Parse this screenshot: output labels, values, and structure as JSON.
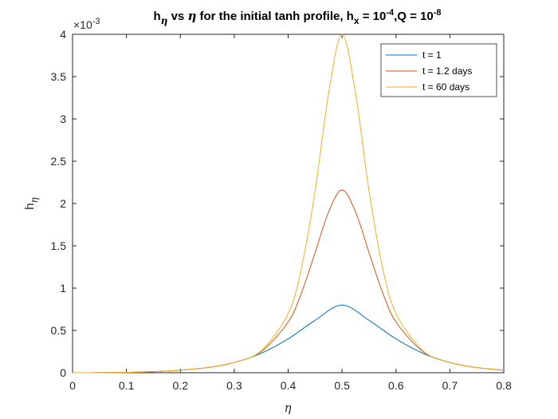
{
  "chart_data": {
    "type": "line",
    "title_parts": [
      "h",
      "η",
      " vs ",
      "η",
      " for the initial tanh profile, h",
      "x",
      " = 10",
      "-4",
      ",Q = 10",
      "-8"
    ],
    "xlabel": "η",
    "ylabel_parts": [
      "h",
      "η"
    ],
    "y_multiplier": "×10",
    "y_multiplier_exp": "-3",
    "xlim": [
      0,
      0.8
    ],
    "ylim": [
      0,
      4
    ],
    "xticks": [
      0,
      0.1,
      0.2,
      0.3,
      0.4,
      0.5,
      0.6,
      0.7,
      0.8
    ],
    "xtick_labels": [
      "0",
      "0.1",
      "0.2",
      "0.3",
      "0.4",
      "0.5",
      "0.6",
      "0.7",
      "0.8"
    ],
    "yticks": [
      0,
      0.5,
      1,
      1.5,
      2,
      2.5,
      3,
      3.5,
      4
    ],
    "ytick_labels": [
      "0",
      "0.5",
      "1",
      "1.5",
      "2",
      "2.5",
      "3",
      "3.5",
      "4"
    ],
    "grid": false,
    "legend_position": "top-right",
    "series": [
      {
        "name": "t = 1",
        "color": "#0072BD",
        "x": [
          0,
          0.05,
          0.1,
          0.15,
          0.2,
          0.25,
          0.3,
          0.35,
          0.4,
          0.45,
          0.5,
          0.55,
          0.6,
          0.65,
          0.7,
          0.75,
          0.8
        ],
        "y": [
          0.0,
          0.001,
          0.004,
          0.013,
          0.03,
          0.06,
          0.12,
          0.23,
          0.4,
          0.62,
          0.8,
          0.62,
          0.4,
          0.23,
          0.12,
          0.06,
          0.03
        ]
      },
      {
        "name": "t = 1.2 days",
        "color": "#D95319",
        "x": [
          0,
          0.05,
          0.1,
          0.15,
          0.2,
          0.25,
          0.3,
          0.35,
          0.4,
          0.425,
          0.45,
          0.475,
          0.5,
          0.525,
          0.55,
          0.575,
          0.6,
          0.65,
          0.7,
          0.75,
          0.8
        ],
        "y": [
          0.0,
          0.001,
          0.004,
          0.013,
          0.03,
          0.06,
          0.12,
          0.25,
          0.6,
          0.95,
          1.42,
          1.9,
          2.16,
          1.9,
          1.42,
          0.95,
          0.6,
          0.25,
          0.12,
          0.06,
          0.03
        ]
      },
      {
        "name": "t = 60 days",
        "color": "#EDB120",
        "x": [
          0,
          0.05,
          0.1,
          0.15,
          0.2,
          0.25,
          0.3,
          0.35,
          0.4,
          0.425,
          0.45,
          0.475,
          0.5,
          0.525,
          0.55,
          0.575,
          0.6,
          0.65,
          0.7,
          0.75,
          0.8
        ],
        "y": [
          0.0,
          0.001,
          0.004,
          0.013,
          0.03,
          0.06,
          0.12,
          0.26,
          0.7,
          1.25,
          2.15,
          3.3,
          4.0,
          3.3,
          2.15,
          1.25,
          0.7,
          0.26,
          0.12,
          0.06,
          0.03
        ]
      }
    ]
  }
}
